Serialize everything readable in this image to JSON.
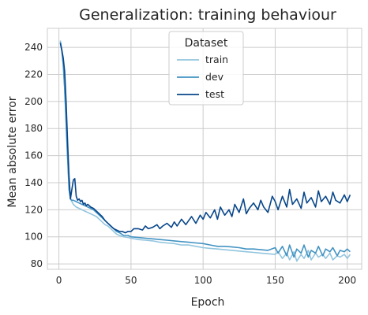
{
  "chart_data": {
    "type": "line",
    "title": "Generalization: training behaviour",
    "xlabel": "Epoch",
    "ylabel": "Mean absolute error",
    "xlim": [
      -8,
      210
    ],
    "ylim": [
      76,
      254
    ],
    "xticks": [
      0,
      50,
      100,
      150,
      200
    ],
    "yticks": [
      80,
      100,
      120,
      140,
      160,
      180,
      200,
      220,
      240
    ],
    "grid": true,
    "legend": {
      "title": "Dataset",
      "placement": "top-center"
    },
    "series": [
      {
        "name": "train",
        "color": "#92c5de",
        "x": [
          1,
          2,
          3,
          4,
          5,
          6,
          7,
          8,
          9,
          10,
          12,
          14,
          16,
          18,
          20,
          22,
          24,
          26,
          28,
          30,
          32,
          34,
          36,
          38,
          40,
          42,
          45,
          48,
          50,
          55,
          60,
          65,
          70,
          75,
          80,
          85,
          90,
          95,
          100,
          105,
          110,
          115,
          120,
          125,
          130,
          135,
          140,
          145,
          150,
          152,
          155,
          158,
          160,
          163,
          165,
          168,
          170,
          173,
          175,
          178,
          180,
          183,
          185,
          188,
          190,
          193,
          195,
          198,
          200,
          202
        ],
        "y": [
          245,
          238,
          228,
          210,
          185,
          160,
          138,
          128,
          126,
          124,
          122,
          121,
          120,
          119,
          118,
          117,
          116,
          115,
          113,
          111,
          109,
          108,
          106,
          104,
          102,
          101,
          100,
          99.5,
          99,
          98,
          97.5,
          97,
          96,
          95.5,
          95,
          94,
          94,
          93,
          92,
          91.5,
          91,
          90.5,
          90,
          89.5,
          89,
          88.5,
          88,
          87.5,
          87,
          89,
          84,
          88,
          83,
          89,
          82,
          87,
          84,
          90,
          83,
          88,
          85,
          87,
          84,
          88,
          83,
          86,
          85,
          87,
          84,
          87
        ]
      },
      {
        "name": "dev",
        "color": "#4393c3",
        "x": [
          1,
          2,
          3,
          4,
          5,
          6,
          7,
          8,
          9,
          10,
          12,
          14,
          16,
          18,
          20,
          22,
          24,
          26,
          28,
          30,
          32,
          34,
          36,
          38,
          40,
          42,
          45,
          48,
          50,
          55,
          60,
          65,
          70,
          75,
          80,
          85,
          90,
          95,
          100,
          105,
          110,
          115,
          120,
          125,
          130,
          135,
          140,
          145,
          150,
          152,
          155,
          158,
          160,
          163,
          165,
          168,
          170,
          173,
          175,
          178,
          180,
          183,
          185,
          188,
          190,
          193,
          195,
          198,
          200,
          202
        ],
        "y": [
          244,
          237,
          227,
          209,
          184,
          158,
          135,
          128,
          127,
          127,
          126,
          125,
          124,
          123,
          122,
          121,
          120,
          118,
          116,
          114,
          112,
          110,
          108,
          106,
          104,
          103,
          101,
          101,
          100,
          99.5,
          99,
          98.5,
          98,
          97.5,
          97,
          96.5,
          96,
          95.5,
          95,
          94,
          93,
          93,
          92.5,
          92,
          91,
          91,
          90.5,
          90,
          92,
          88,
          93,
          86,
          94,
          85,
          91,
          88,
          94,
          85,
          90,
          88,
          93,
          86,
          91,
          89,
          92,
          86,
          90,
          89,
          91,
          89
        ]
      },
      {
        "name": "test",
        "color": "#08468a",
        "x": [
          1,
          2,
          3,
          4,
          5,
          6,
          7,
          8,
          9,
          10,
          11,
          12,
          13,
          14,
          15,
          16,
          17,
          18,
          19,
          20,
          22,
          24,
          26,
          28,
          30,
          32,
          34,
          36,
          38,
          40,
          42,
          44,
          46,
          48,
          50,
          52,
          55,
          58,
          60,
          62,
          65,
          68,
          70,
          72,
          75,
          78,
          80,
          82,
          85,
          88,
          90,
          92,
          95,
          98,
          100,
          102,
          105,
          108,
          110,
          112,
          115,
          118,
          120,
          122,
          125,
          128,
          130,
          132,
          135,
          138,
          140,
          142,
          145,
          148,
          150,
          152,
          155,
          158,
          160,
          162,
          165,
          168,
          170,
          172,
          175,
          178,
          180,
          182,
          185,
          188,
          190,
          192,
          195,
          198,
          200,
          202
        ],
        "y": [
          243,
          238,
          232,
          222,
          200,
          170,
          145,
          128,
          135,
          142,
          143,
          130,
          127,
          128,
          126,
          127,
          124,
          125,
          123,
          124,
          122,
          121,
          119,
          117,
          115,
          112,
          110,
          108,
          106,
          105,
          104,
          104,
          103,
          104,
          104,
          106,
          106,
          105,
          108,
          106,
          107,
          109,
          106,
          108,
          110,
          107,
          111,
          108,
          113,
          109,
          112,
          115,
          110,
          116,
          113,
          118,
          114,
          120,
          113,
          122,
          116,
          120,
          115,
          124,
          118,
          128,
          117,
          121,
          125,
          120,
          127,
          122,
          118,
          130,
          126,
          120,
          130,
          122,
          135,
          124,
          128,
          121,
          133,
          125,
          129,
          122,
          134,
          126,
          130,
          124,
          133,
          127,
          125,
          131,
          126,
          131
        ]
      }
    ]
  }
}
